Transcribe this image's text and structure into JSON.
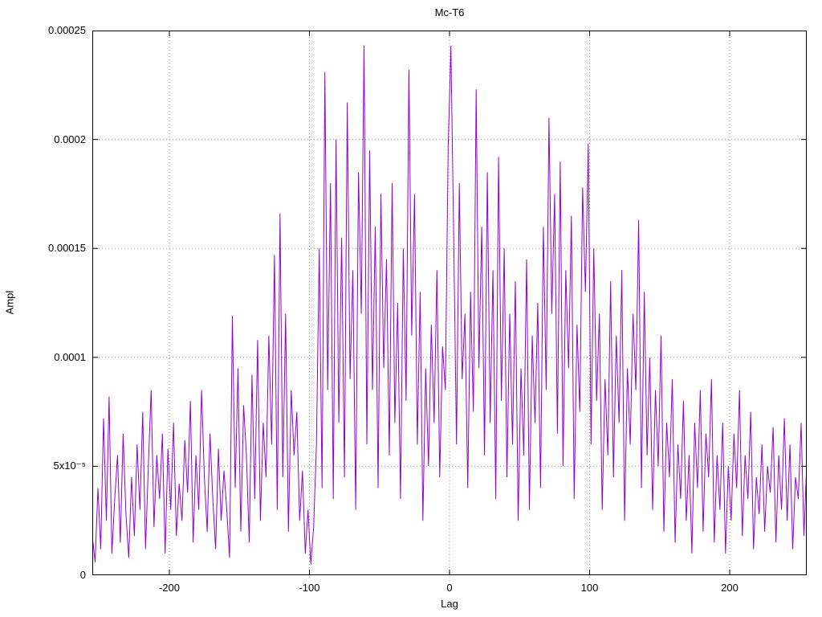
{
  "chart_data": {
    "type": "line",
    "title": "Mc-T6",
    "xlabel": "Lag",
    "ylabel": "Ampl",
    "xlim": [
      -255,
      255
    ],
    "ylim": [
      0,
      0.00025
    ],
    "grid": true,
    "legend": "none",
    "line_color": "#9400D3",
    "grid_color": "#9a9a9a",
    "border_color": "#000000",
    "xticks": [
      {
        "v": -200,
        "label": "-200"
      },
      {
        "v": -100,
        "label": "-100"
      },
      {
        "v": 0,
        "label": "0"
      },
      {
        "v": 100,
        "label": "100"
      },
      {
        "v": 200,
        "label": "200"
      }
    ],
    "yticks": [
      {
        "v": 0,
        "label": "0"
      },
      {
        "v": 5e-05,
        "label": "5x10⁻⁵"
      },
      {
        "v": 0.0001,
        "label": "0.0001"
      },
      {
        "v": 0.00015,
        "label": "0.00015"
      },
      {
        "v": 0.0002,
        "label": "0.0002"
      },
      {
        "v": 0.00025,
        "label": "0.00025"
      }
    ],
    "series": [
      {
        "name": "Mc-T6",
        "x_start": -255,
        "x_step": 2,
        "y_scale": 1e-06,
        "y": [
          18,
          6,
          40,
          12,
          72,
          25,
          82,
          10,
          35,
          55,
          15,
          65,
          28,
          8,
          45,
          18,
          60,
          30,
          75,
          12,
          50,
          85,
          22,
          55,
          35,
          65,
          10,
          58,
          30,
          70,
          18,
          42,
          25,
          62,
          38,
          80,
          15,
          55,
          30,
          85,
          45,
          20,
          65,
          35,
          12,
          58,
          25,
          48,
          30,
          8,
          119,
          40,
          95,
          20,
          78,
          55,
          15,
          92,
          35,
          108,
          25,
          70,
          45,
          110,
          60,
          147,
          30,
          166,
          45,
          120,
          20,
          85,
          55,
          75,
          25,
          48,
          10,
          30,
          5,
          22,
          60,
          150,
          40,
          231,
          85,
          180,
          35,
          200,
          70,
          155,
          45,
          217,
          90,
          140,
          30,
          185,
          120,
          243,
          60,
          195,
          85,
          160,
          40,
          175,
          95,
          145,
          55,
          180,
          70,
          125,
          35,
          150,
          80,
          232,
          110,
          175,
          60,
          130,
          25,
          95,
          50,
          115,
          70,
          140,
          45,
          105,
          85,
          196,
          243,
          155,
          60,
          180,
          90,
          120,
          40,
          130,
          75,
          223,
          95,
          160,
          55,
          185,
          70,
          140,
          35,
          192,
          80,
          150,
          45,
          120,
          60,
          135,
          25,
          95,
          55,
          145,
          30,
          110,
          70,
          125,
          40,
          160,
          85,
          210,
          120,
          175,
          65,
          190,
          50,
          140,
          95,
          165,
          35,
          115,
          75,
          178,
          130,
          198,
          60,
          150,
          80,
          120,
          30,
          90,
          55,
          135,
          45,
          110,
          70,
          140,
          25,
          95,
          60,
          120,
          85,
          163,
          40,
          130,
          55,
          100,
          30,
          85,
          50,
          110,
          20,
          70,
          45,
          90,
          15,
          60,
          35,
          80,
          25,
          55,
          10,
          70,
          40,
          85,
          20,
          65,
          45,
          90,
          15,
          55,
          30,
          70,
          10,
          50,
          25,
          65,
          40,
          85,
          18,
          55,
          35,
          75,
          12,
          45,
          28,
          60,
          20,
          50,
          38,
          68,
          15,
          55,
          30,
          72,
          25,
          60,
          12,
          45,
          35,
          70,
          18,
          52
        ]
      }
    ]
  }
}
